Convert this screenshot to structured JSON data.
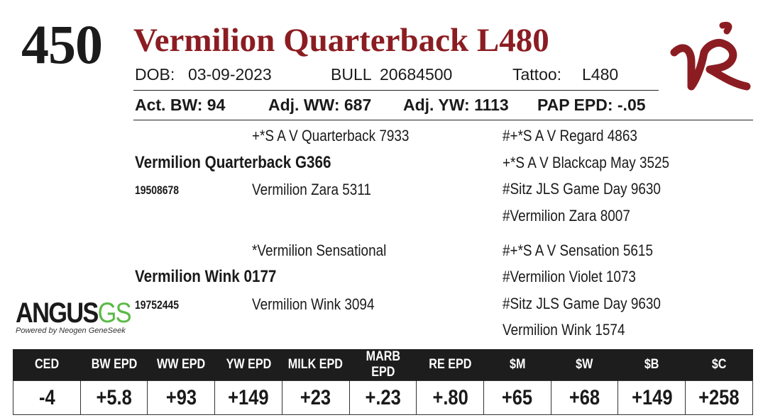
{
  "header": {
    "lot_number": "450",
    "animal_name": "Vermilion Quarterback L480",
    "dob_label": "DOB:",
    "dob_value": "03-09-2023",
    "sex": "BULL",
    "registration": "20684500",
    "tattoo_label": "Tattoo:",
    "tattoo_value": "L480"
  },
  "weights": {
    "act_bw": "Act. BW: 94",
    "adj_ww": "Adj. WW: 687",
    "adj_yw": "Adj. YW: 1113",
    "pap_epd": "PAP EPD: -.05"
  },
  "pedigree": {
    "sire_sire": "+*S A V Quarterback 7933",
    "sire": "Vermilion Quarterback G366",
    "sire_reg": "19508678",
    "sire_dam": "Vermilion Zara 5311",
    "ssss": "#+*S A V Regard 4863",
    "ssd": "+*S A V Blackcap May 3525",
    "sdsire": "#Sitz JLS Game Day 9630",
    "sddam": "#Vermilion Zara 8007",
    "dam_sire": "*Vermilion Sensational",
    "dam": "Vermilion Wink 0177",
    "dam_reg": "19752445",
    "dam_dam": "Vermilion Wink 3094",
    "dss": "#+*S A V Sensation 5615",
    "dsd": "#Vermilion Violet 1073",
    "dds": "#Sitz JLS Game Day 9630",
    "ddd": "Vermilion Wink 1574"
  },
  "logos": {
    "angus_main": "ANGUS",
    "angus_gs": "GS",
    "angus_tagline": "Powered by Neogen GeneSeek",
    "brand_color": "#8b1d22",
    "angus_green": "#5bb947"
  },
  "epd_table": {
    "headers": [
      "CED",
      "BW EPD",
      "WW EPD",
      "YW EPD",
      "MILK EPD",
      "MARB EPD",
      "RE EPD",
      "$M",
      "$W",
      "$B",
      "$C"
    ],
    "values": [
      "-4",
      "+5.8",
      "+93",
      "+149",
      "+23",
      "+.23",
      "+.80",
      "+65",
      "+68",
      "+149",
      "+258"
    ]
  }
}
